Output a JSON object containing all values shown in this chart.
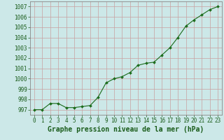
{
  "x": [
    0,
    1,
    2,
    3,
    4,
    5,
    6,
    7,
    8,
    9,
    10,
    11,
    12,
    13,
    14,
    15,
    16,
    17,
    18,
    19,
    20,
    21,
    22,
    23
  ],
  "y": [
    997.0,
    997.0,
    997.6,
    997.6,
    997.2,
    997.2,
    997.3,
    997.4,
    998.2,
    999.6,
    1000.0,
    1000.2,
    1000.6,
    1001.3,
    1001.5,
    1001.6,
    1002.3,
    1003.0,
    1004.0,
    1005.1,
    1005.7,
    1006.2,
    1006.7,
    1007.0
  ],
  "line_color": "#1a6b1a",
  "marker": "D",
  "marker_size": 2,
  "line_width": 0.8,
  "bg_color": "#cce8e8",
  "grid_color": "#c8a0a0",
  "title": "Graphe pression niveau de la mer (hPa)",
  "title_color": "#1a5c1a",
  "title_fontsize": 7,
  "yticks": [
    997,
    998,
    999,
    1000,
    1001,
    1002,
    1003,
    1004,
    1005,
    1006,
    1007
  ],
  "ylim": [
    996.5,
    1007.5
  ],
  "xlim": [
    -0.5,
    23.5
  ],
  "xticks": [
    0,
    1,
    2,
    3,
    4,
    5,
    6,
    7,
    8,
    9,
    10,
    11,
    12,
    13,
    14,
    15,
    16,
    17,
    18,
    19,
    20,
    21,
    22,
    23
  ],
  "tick_color": "#1a5c1a",
  "tick_fontsize": 5.5,
  "spine_color": "#888888"
}
